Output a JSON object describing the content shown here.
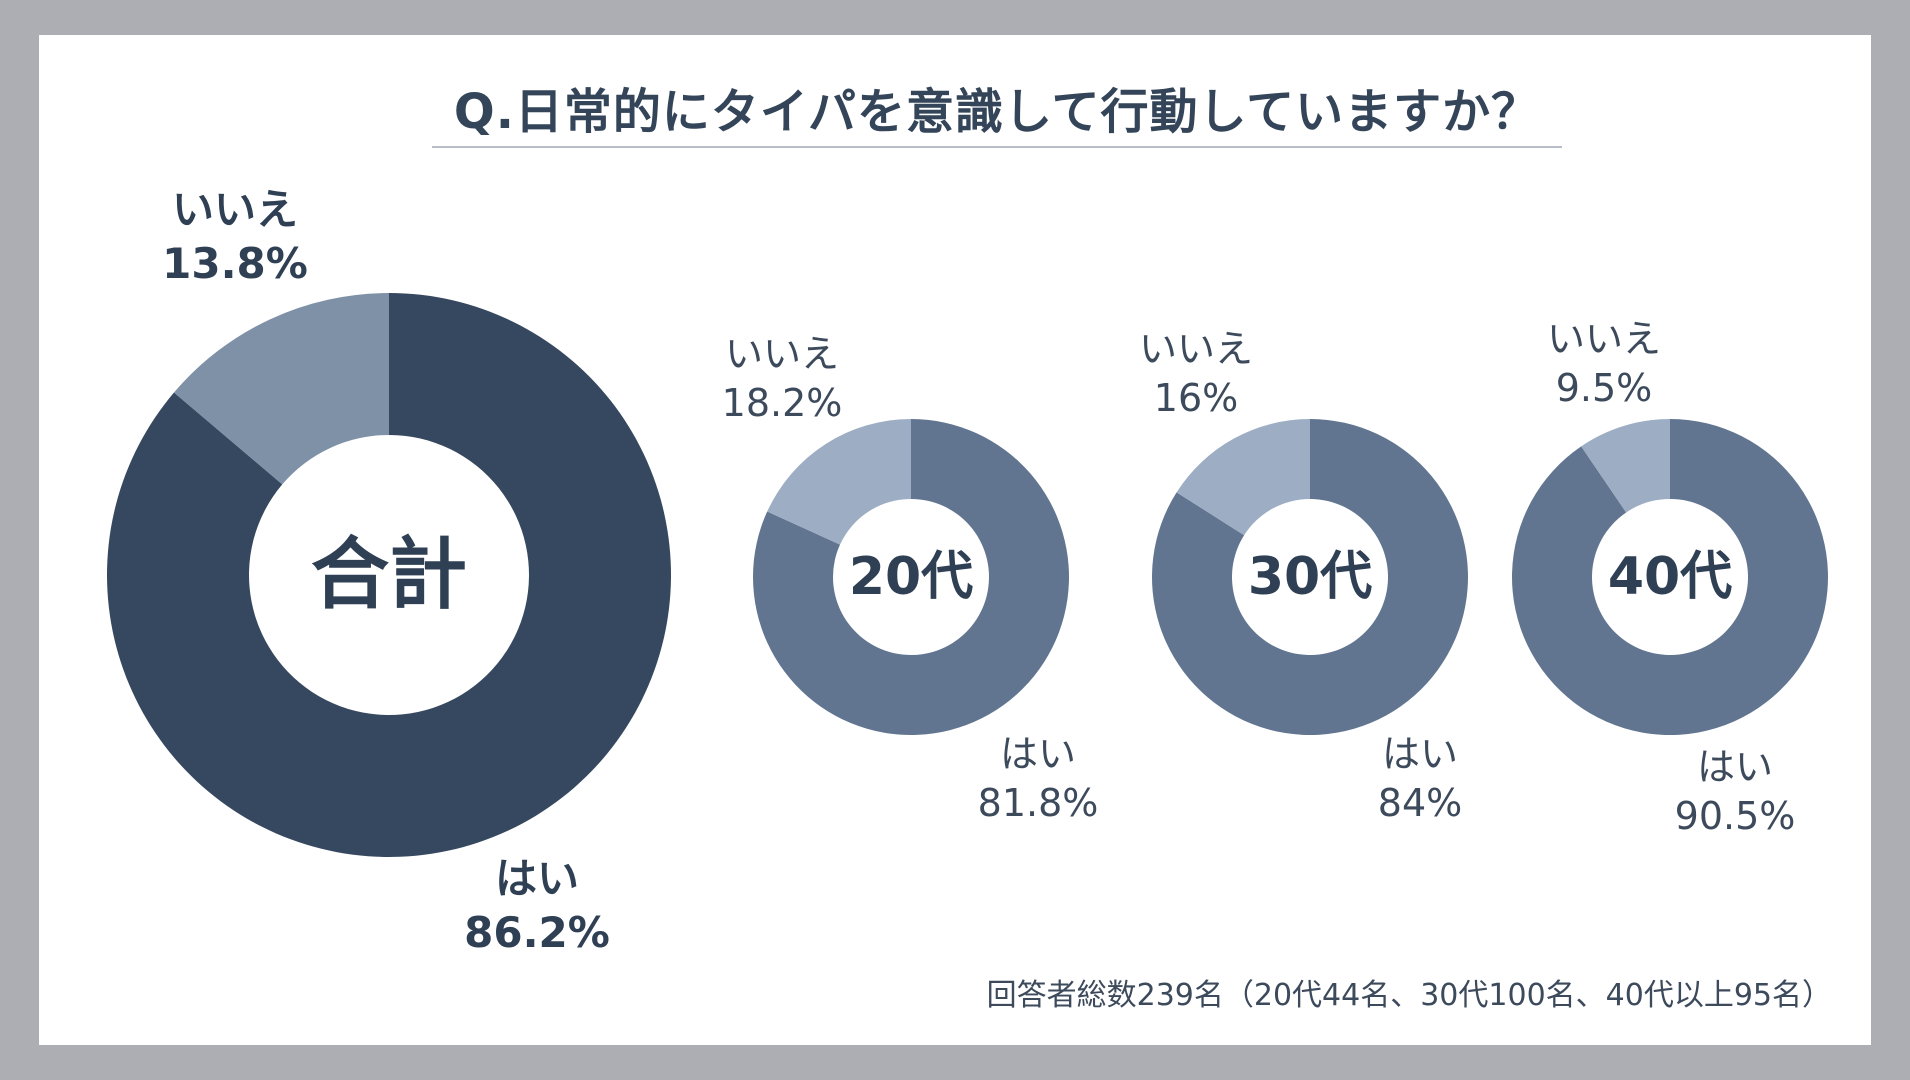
{
  "title": "Q.日常的にタイパを意識して行動していますか？",
  "footnote": "回答者総数239名（20代44名、30代100名、40代以上95名）",
  "chart_data": [
    {
      "type": "pie",
      "center_label": "合計",
      "slices": [
        {
          "label": "はい",
          "value": 86.2,
          "value_text": "86.2%",
          "color": "#36485f"
        },
        {
          "label": "いいえ",
          "value": 13.8,
          "value_text": "13.8%",
          "color": "#7f91a7"
        }
      ]
    },
    {
      "type": "pie",
      "center_label": "20代",
      "slices": [
        {
          "label": "はい",
          "value": 81.8,
          "value_text": "81.8%",
          "color": "#617590"
        },
        {
          "label": "いいえ",
          "value": 18.2,
          "value_text": "18.2%",
          "color": "#9daec4"
        }
      ]
    },
    {
      "type": "pie",
      "center_label": "30代",
      "slices": [
        {
          "label": "はい",
          "value": 84,
          "value_text": "84%",
          "color": "#617590"
        },
        {
          "label": "いいえ",
          "value": 16,
          "value_text": "16%",
          "color": "#9daec4"
        }
      ]
    },
    {
      "type": "pie",
      "center_label": "40代",
      "slices": [
        {
          "label": "はい",
          "value": 90.5,
          "value_text": "90.5%",
          "color": "#617590"
        },
        {
          "label": "いいえ",
          "value": 9.5,
          "value_text": "9.5%",
          "color": "#9daec4"
        }
      ]
    }
  ]
}
